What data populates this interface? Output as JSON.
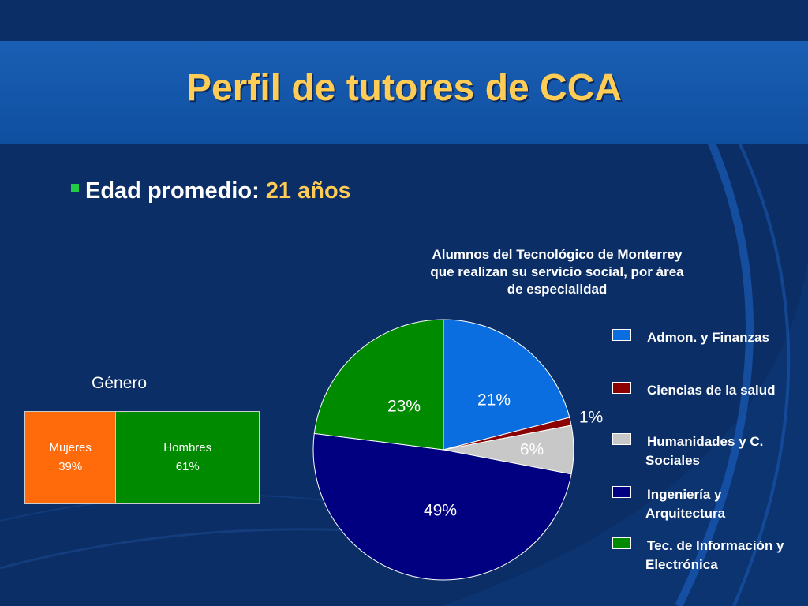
{
  "slide": {
    "title": "Perfil de tutores de CCA",
    "bullet_label": "Edad promedio:",
    "bullet_value": "21 años",
    "colors": {
      "background": "#0b2e66",
      "title_band": "#1a5fb4",
      "title_text": "#ffcc55",
      "bullet_square": "#22cc44"
    }
  },
  "chart_data": [
    {
      "type": "pie",
      "title_lines": [
        "Alumnos del Tecnológico de Monterrey",
        "que realizan su servicio social, por área",
        "de especialidad"
      ],
      "legend_position": "right",
      "series": [
        {
          "name": "Admon. y Finanzas",
          "value": 21,
          "label": "21%",
          "color": "#0a6ee0"
        },
        {
          "name": "Ciencias de la salud",
          "value": 1,
          "label": "1%",
          "color": "#8b0000"
        },
        {
          "name": "Humanidades y C. Sociales",
          "value": 6,
          "label": "6%",
          "color": "#c8c8c8"
        },
        {
          "name": "Ingeniería y Arquitectura",
          "value": 49,
          "label": "49%",
          "color": "#000080"
        },
        {
          "name": "Tec. de Información y Electrónica",
          "value": 23,
          "label": "23%",
          "color": "#008a00"
        }
      ]
    },
    {
      "type": "bar",
      "orientation": "horizontal-stacked",
      "title": "Género",
      "series": [
        {
          "name": "Mujeres",
          "value": 39,
          "label": "39%",
          "color": "#ff6a0a"
        },
        {
          "name": "Hombres",
          "value": 61,
          "label": "61%",
          "color": "#008a00"
        }
      ]
    }
  ]
}
